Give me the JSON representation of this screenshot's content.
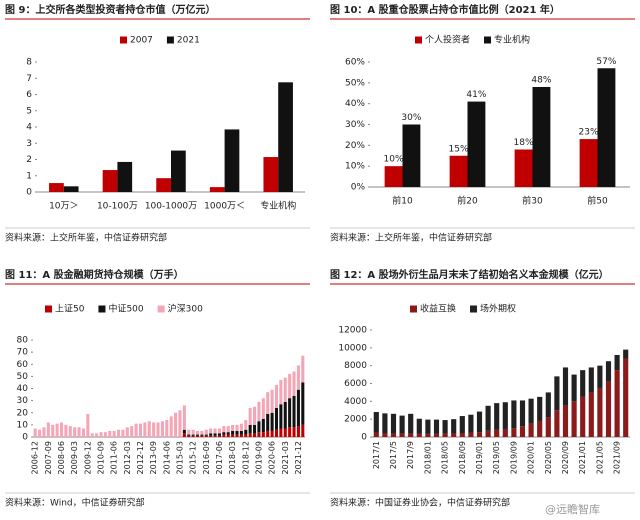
{
  "chart_data": [
    {
      "type": "bar",
      "title": "图 9：上交所各类型投资者持仓市值（万亿元）",
      "source": "资料来源：上交所年鉴，中信证券研究部",
      "categories": [
        "10万＞",
        "10-100万",
        "100-1000万",
        "1000万＜",
        "专业机构"
      ],
      "series": [
        {
          "name": "2007",
          "color": "#c00000",
          "values": [
            0.55,
            1.35,
            0.85,
            0.3,
            2.15
          ]
        },
        {
          "name": "2021",
          "color": "#111111",
          "values": [
            0.35,
            1.85,
            2.55,
            3.85,
            6.75
          ]
        }
      ],
      "ylim": [
        0,
        8
      ],
      "yticks": [
        0,
        1,
        2,
        3,
        4,
        5,
        6,
        7,
        8
      ]
    },
    {
      "type": "bar",
      "title": "图 10：A 股重仓股票占持仓市值比例（2021 年）",
      "source": "资料来源：上交所年鉴，中信证券研究部",
      "categories": [
        "前10",
        "前20",
        "前30",
        "前50"
      ],
      "series": [
        {
          "name": "个人投资者",
          "color": "#c00000",
          "values": [
            10,
            15,
            18,
            23
          ],
          "value_labels": [
            "10%",
            "15%",
            "18%",
            "23%"
          ]
        },
        {
          "name": "专业机构",
          "color": "#111111",
          "values": [
            30,
            41,
            48,
            57
          ],
          "value_labels": [
            "30%",
            "41%",
            "48%",
            "57%"
          ]
        }
      ],
      "ylim": [
        0,
        60
      ],
      "yticks": [
        {
          "value": 0,
          "label": "0%"
        },
        {
          "value": 10,
          "label": "10%"
        },
        {
          "value": 20,
          "label": "20%"
        },
        {
          "value": 30,
          "label": "30%"
        },
        {
          "value": 40,
          "label": "40%"
        },
        {
          "value": 50,
          "label": "50%"
        },
        {
          "value": 60,
          "label": "60%"
        }
      ]
    },
    {
      "type": "bar",
      "stacked": true,
      "title": "图 11：A 股金融期货持仓规模（万手）",
      "source": "资料来源：Wind，中信证券研究部",
      "categories": [
        "2006-12",
        null,
        null,
        "2007-09",
        null,
        null,
        "2008-06",
        null,
        null,
        "2009-03",
        null,
        null,
        "2009-12",
        null,
        null,
        "2010-09",
        null,
        null,
        "2011-06",
        null,
        null,
        "2012-03",
        null,
        null,
        "2012-12",
        null,
        null,
        "2013-09",
        null,
        null,
        "2014-06",
        null,
        null,
        "2015-03",
        null,
        null,
        "2015-12",
        null,
        null,
        "2016-09",
        null,
        null,
        "2017-06",
        null,
        null,
        "2018-03",
        null,
        null,
        "2018-12",
        null,
        null,
        "2019-09",
        null,
        null,
        "2020-06",
        null,
        null,
        "2021-03",
        null,
        null,
        "2021-12",
        null
      ],
      "series": [
        {
          "name": "上证50",
          "color": "#c00000",
          "values": [
            0,
            0,
            0,
            0,
            0,
            0,
            0,
            0,
            0,
            0,
            0,
            0,
            0,
            0,
            0,
            0,
            0,
            0,
            0,
            0,
            0,
            0,
            0,
            0,
            0,
            0,
            0,
            0,
            0,
            0,
            0,
            0,
            0,
            0,
            3,
            1,
            1,
            1,
            1,
            1,
            1,
            1,
            1,
            2,
            2,
            2,
            2,
            2,
            2,
            3,
            3,
            4,
            4,
            5,
            5,
            6,
            7,
            7,
            8,
            8,
            9,
            10
          ]
        },
        {
          "name": "中证500",
          "color": "#111111",
          "values": [
            0,
            0,
            0,
            0,
            0,
            0,
            0,
            0,
            0,
            0,
            0,
            0,
            0,
            0,
            0,
            0,
            0,
            0,
            0,
            0,
            0,
            0,
            0,
            0,
            0,
            0,
            0,
            0,
            0,
            0,
            0,
            0,
            0,
            0,
            3,
            1,
            1,
            1,
            1,
            1,
            2,
            2,
            2,
            2,
            2,
            3,
            3,
            3,
            4,
            7,
            7,
            9,
            11,
            14,
            15,
            18,
            20,
            22,
            24,
            26,
            30,
            35
          ]
        },
        {
          "name": "沪深300",
          "color": "#f4a6b6",
          "values": [
            7,
            6,
            8,
            12,
            10,
            11,
            12,
            10,
            9,
            8,
            8,
            7,
            19,
            3,
            3,
            4,
            4,
            5,
            5,
            6,
            6,
            8,
            9,
            11,
            11,
            12,
            13,
            12,
            12,
            13,
            14,
            17,
            20,
            22,
            20,
            4,
            4,
            3,
            3,
            4,
            4,
            4,
            4,
            5,
            5,
            5,
            5,
            6,
            8,
            14,
            15,
            16,
            17,
            18,
            19,
            19,
            20,
            20,
            20,
            20,
            20,
            22
          ]
        }
      ],
      "ylim": [
        0,
        80
      ],
      "yticks": [
        0,
        10,
        20,
        30,
        40,
        50,
        60,
        70,
        80
      ]
    },
    {
      "type": "bar",
      "stacked": true,
      "title": "图 12：A 股场外衍生品月末未了结初始名义本金规模（亿元）",
      "source": "资料来源：中国证券业协会，中信证券研究部",
      "categories": [
        "2017/1",
        null,
        "2017/5",
        null,
        "2017/9",
        null,
        "2018/01",
        null,
        "2018/05",
        null,
        "2018/09",
        null,
        "2019/01",
        null,
        "2019/05",
        null,
        "2019/09",
        null,
        "2020/01",
        null,
        "2020/05",
        null,
        "2020/09",
        null,
        "2021/01",
        null,
        "2021/05",
        null,
        "2021/09",
        null
      ],
      "series": [
        {
          "name": "收益互换",
          "color": "#8b1a1a",
          "values": [
            500,
            450,
            400,
            400,
            400,
            350,
            350,
            350,
            400,
            400,
            450,
            500,
            550,
            700,
            800,
            900,
            1000,
            1200,
            1500,
            1800,
            2200,
            3000,
            3500,
            4000,
            4500,
            5000,
            5500,
            6200,
            7500,
            8800
          ]
        },
        {
          "name": "场外期权",
          "color": "#222222",
          "values": [
            2300,
            2200,
            2200,
            2000,
            2200,
            1700,
            1600,
            1600,
            1500,
            1600,
            1900,
            2000,
            2300,
            2800,
            3000,
            3000,
            3100,
            2900,
            2800,
            2700,
            2800,
            3800,
            4300,
            3000,
            3000,
            2800,
            2500,
            2300,
            1700,
            1000
          ]
        }
      ],
      "ylim": [
        0,
        12000
      ],
      "yticks": [
        0,
        2000,
        4000,
        6000,
        8000,
        10000,
        12000
      ]
    }
  ],
  "watermark": "@远瞻智库"
}
